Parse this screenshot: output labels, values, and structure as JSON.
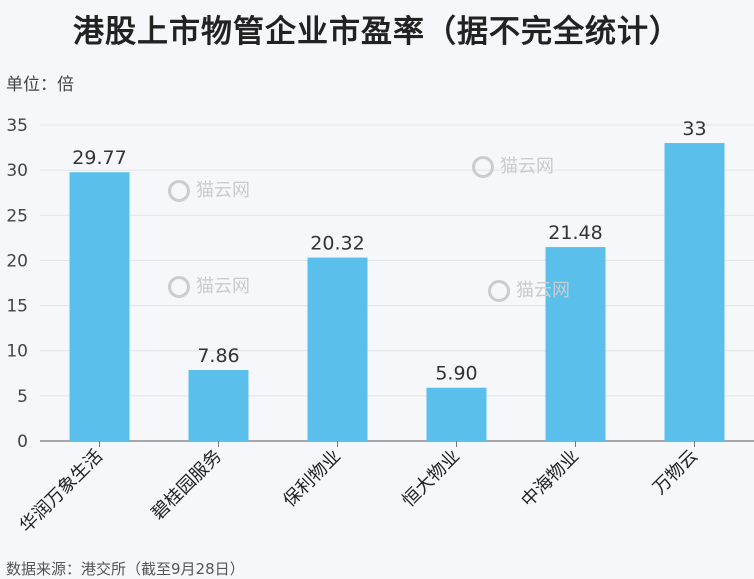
{
  "chart_data": {
    "type": "bar",
    "title": "港股上市物管企业市盈率（据不完全统计）",
    "unit_label": "单位：倍",
    "source_note": "数据来源：港交所（截至9月28日）",
    "categories": [
      "华润万象生活",
      "碧桂园服务",
      "保利物业",
      "恒大物业",
      "中海物业",
      "万物云"
    ],
    "values": [
      29.77,
      7.86,
      20.32,
      5.9,
      21.48,
      33
    ],
    "value_labels": [
      "29.77",
      "7.86",
      "20.32",
      "5.90",
      "21.48",
      "33"
    ],
    "ylim": [
      0,
      35
    ],
    "yticks": [
      0,
      5,
      10,
      15,
      20,
      25,
      30,
      35
    ],
    "grid": true,
    "bar_color": "#5bbfec"
  },
  "watermark": {
    "text": "猫云网"
  }
}
